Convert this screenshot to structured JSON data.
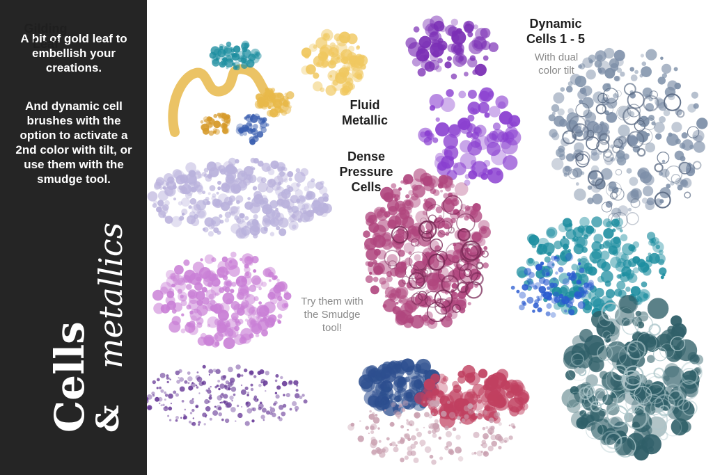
{
  "sidebar": {
    "intro_line1": "A bit of gold leaf to embellish your creations.",
    "intro_line2": "And dynamic cell brushes with the option to activate a 2nd color with tilt, or use them with the smudge tool.",
    "title_main": "Cells",
    "title_amp": "&",
    "title_script": "metallics"
  },
  "labels": {
    "gilding": "Gilding Leaf",
    "fluid": "Fluid Metallic",
    "dense": "Dense Pressure Cells",
    "dynamic": "Dynamic Cells 1 - 5",
    "dynamic_sub": "With dual color tilt",
    "smudge": "Try them with the Smudge tool!"
  },
  "colors": {
    "sidebar_bg": "#252525",
    "gold": "#e8b94a",
    "teal": "#1d8ea0",
    "violet": "#7b2fb5",
    "lavender": "#b9b1dc",
    "pink": "#c97fd6",
    "magenta": "#b0467e",
    "steel": "#7d8fa8",
    "dark_teal": "#2f5f68",
    "blue": "#2a5bd0"
  }
}
